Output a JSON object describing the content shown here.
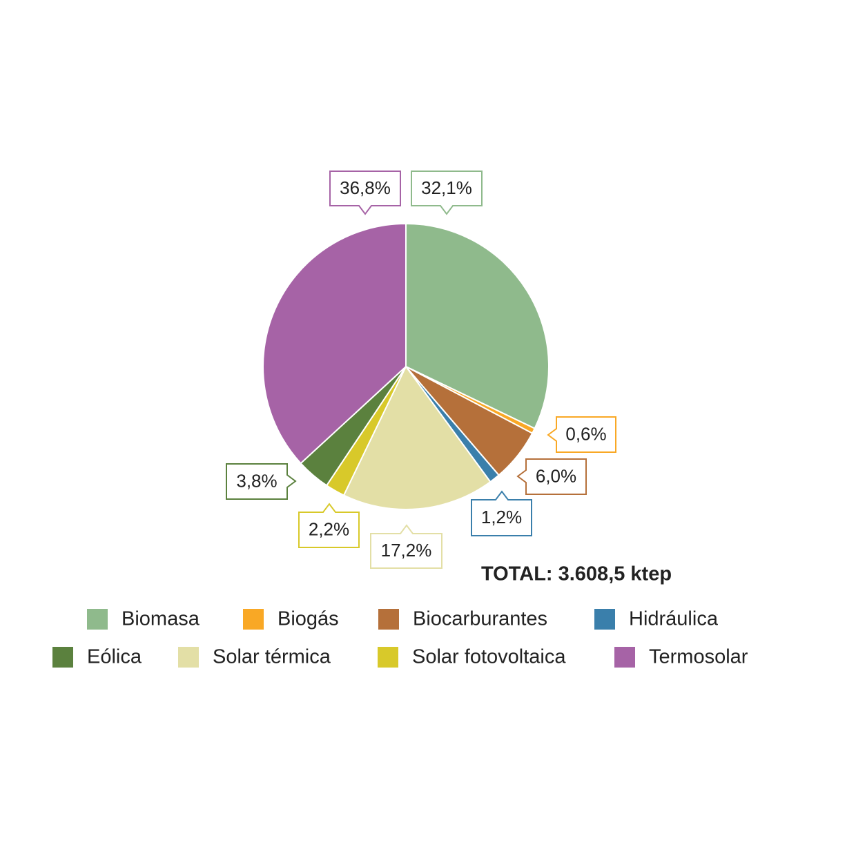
{
  "chart_data": {
    "type": "pie",
    "categories": [
      "Biomasa",
      "Biogás",
      "Biocarburantes",
      "Hidráulica",
      "Solar térmica",
      "Solar fotovoltaica",
      "Eólica",
      "Termosolar"
    ],
    "values": [
      32.1,
      0.6,
      6.0,
      1.2,
      17.2,
      2.2,
      3.8,
      36.8
    ],
    "value_labels": [
      "32,1%",
      "0,6%",
      "6,0%",
      "1,2%",
      "17,2%",
      "2,2%",
      "3,8%",
      "36,8%"
    ],
    "colors": [
      "#8fba8c",
      "#f9a825",
      "#b5703a",
      "#3a7fab",
      "#e3dfa6",
      "#d8c92a",
      "#5b813e",
      "#a663a6"
    ],
    "annotation": "TOTAL: 3.608,5 ktep",
    "legend": true
  }
}
